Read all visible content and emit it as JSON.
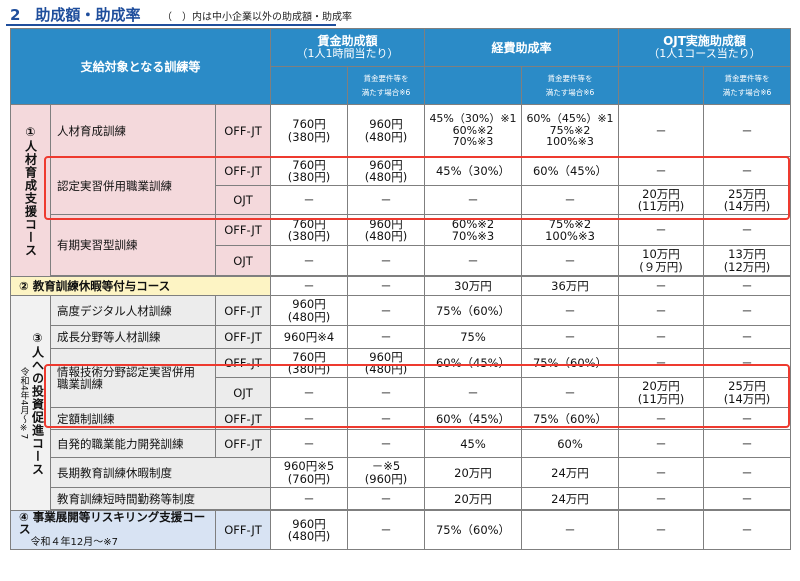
{
  "title": {
    "main": "2　助成額・助成率",
    "note": "（　）内は中小企業以外の助成額・助成率"
  },
  "headers": {
    "target": "支給対象となる訓練等",
    "wage": "賃金助成額",
    "wage_sub": "（1人1時間当たり）",
    "expense": "経費助成率",
    "ojt": "OJT実施助成額",
    "ojt_sub": "（1人1コース当たり）",
    "cond_line1": "賃金要件等を",
    "cond_line2": "満たす場合※6"
  },
  "sections": {
    "s1": "①人材育成支援コース",
    "s2": "② 教育訓練休暇等付与コース",
    "s3": "③人への投資促進コース",
    "s3_sub": "令和4年4月〜※7",
    "s4": "④ 事業展開等リスキリング支援コース",
    "s4_sub": "令和４年12月〜※7"
  },
  "rows": {
    "r1": {
      "name": "人材育成訓練",
      "type": "OFF-JT",
      "w1": "760円",
      "w1b": "(380円)",
      "w2": "960円",
      "w2b": "(480円)",
      "e1a": "45%（30%）※1",
      "e1b": "60%※2",
      "e1c": "70%※3",
      "e2a": "60%（45%）※1",
      "e2b": "75%※2",
      "e2c": "100%※3",
      "o1": "－",
      "o2": "－"
    },
    "r2": {
      "name": "認定実習併用職業訓練",
      "type1": "OFF-JT",
      "type2": "OJT",
      "w1": "760円",
      "w1b": "(380円)",
      "w2": "960円",
      "w2b": "(480円)",
      "e1": "45%（30%）",
      "e2": "60%（45%）",
      "o1": "－",
      "o2": "－",
      "dash": "－",
      "ojt_o1": "20万円",
      "ojt_o1b": "(11万円)",
      "ojt_o2": "25万円",
      "ojt_o2b": "(14万円)"
    },
    "r3": {
      "name": "有期実習型訓練",
      "type1": "OFF-JT",
      "type2": "OJT",
      "w1": "760円",
      "w1b": "(380円)",
      "w2": "960円",
      "w2b": "(480円)",
      "e1a": "60%※2",
      "e1b": "70%※3",
      "e2a": "75%※2",
      "e2b": "100%※3",
      "dash": "－",
      "ojt_o1": "10万円",
      "ojt_o1b": "(９万円)",
      "ojt_o2": "13万円",
      "ojt_o2b": "(12万円)"
    },
    "r4": {
      "w1": "－",
      "w2": "－",
      "e1": "30万円",
      "e2": "36万円",
      "o1": "－",
      "o2": "－"
    },
    "r5": {
      "name": "高度デジタル人材訓練",
      "type": "OFF-JT",
      "w1": "960円",
      "w1b": "(480円)",
      "w2": "－",
      "e1": "75%（60%）",
      "e2": "－",
      "o1": "－",
      "o2": "－"
    },
    "r6": {
      "name": "成長分野等人材訓練",
      "type": "OFF-JT",
      "w1": "960円※4",
      "w2": "－",
      "e1": "75%",
      "e2": "－",
      "o1": "－",
      "o2": "－"
    },
    "r7": {
      "name1": "情報技術分野認定実習併用",
      "name2": "職業訓練",
      "type1": "OFF-JT",
      "type2": "OJT",
      "w1": "760円",
      "w1b": "(380円)",
      "w2": "960円",
      "w2b": "(480円)",
      "e1": "60%（45%）",
      "e2": "75%（60%）",
      "o1": "－",
      "o2": "－",
      "dash": "－",
      "ojt_o1": "20万円",
      "ojt_o1b": "(11万円)",
      "ojt_o2": "25万円",
      "ojt_o2b": "(14万円)"
    },
    "r8": {
      "name": "定額制訓練",
      "type": "OFF-JT",
      "w1": "－",
      "w2": "－",
      "e1": "60%（45%）",
      "e2": "75%（60%）",
      "o1": "－",
      "o2": "－"
    },
    "r9": {
      "name": "自発的職業能力開発訓練",
      "type": "OFF-JT",
      "w1": "－",
      "w2": "－",
      "e1": "45%",
      "e2": "60%",
      "o1": "－",
      "o2": "－"
    },
    "r10": {
      "name": "長期教育訓練休暇制度",
      "w1": "960円※5",
      "w1b": "(760円)",
      "w2": "－※5",
      "w2b": "(960円)",
      "e1": "20万円",
      "e2": "24万円",
      "o1": "－",
      "o2": "－"
    },
    "r11": {
      "name": "教育訓練短時間勤務等制度",
      "w1": "－",
      "w2": "－",
      "e1": "20万円",
      "e2": "24万円",
      "o1": "－",
      "o2": "－"
    },
    "r12": {
      "type": "OFF-JT",
      "w1": "960円",
      "w1b": "(480円)",
      "w2": "－",
      "e1": "75%（60%）",
      "e2": "－",
      "o1": "－",
      "o2": "－"
    }
  },
  "colors": {
    "header": "#2b8bc7",
    "section1": "#f4d9dc",
    "section2": "#fdf4c4",
    "section4": "#d8e3f3",
    "highlight": "#ee3a2f",
    "title": "#1f4e9c"
  }
}
